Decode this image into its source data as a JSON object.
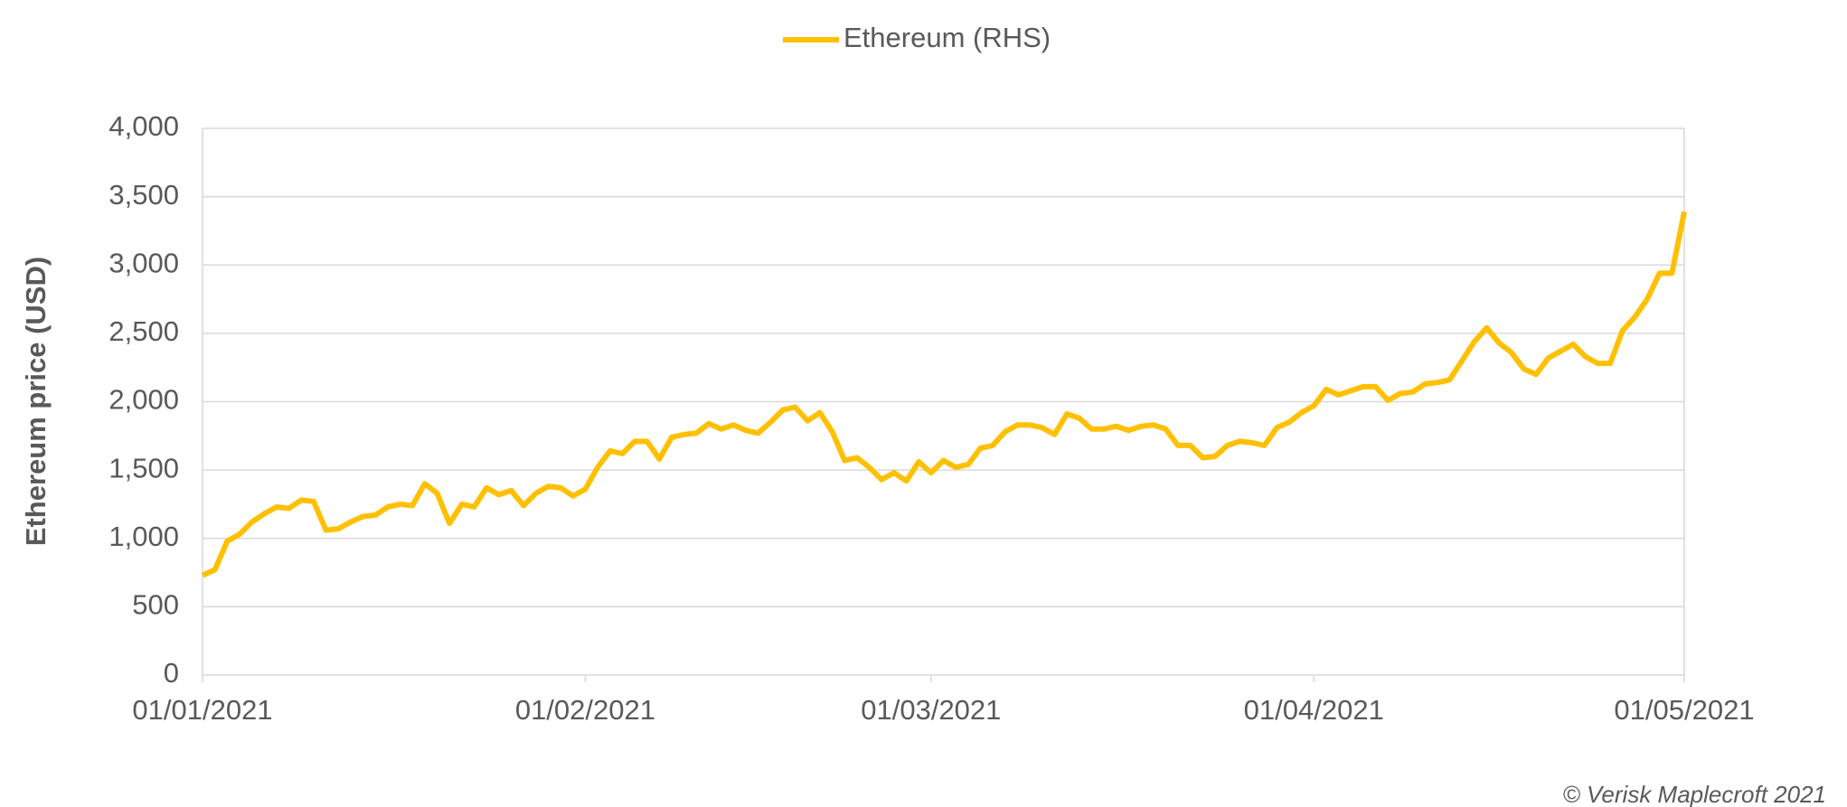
{
  "chart_data": {
    "type": "line",
    "legend_position": "top",
    "ylabel": "Ethereum price (USD)",
    "credit": "© Verisk Maplecroft 2021",
    "grid": true,
    "ylim": [
      0,
      4000
    ],
    "yticks": [
      0,
      500,
      {
        "value": 1000,
        "label": "1,000"
      },
      {
        "value": 1500,
        "label": "1,500"
      },
      {
        "value": 2000,
        "label": "2,000"
      },
      {
        "value": 2500,
        "label": "2,500"
      },
      {
        "value": 3000,
        "label": "3,000"
      },
      {
        "value": 3500,
        "label": "3,500"
      },
      {
        "value": 4000,
        "label": "4,000"
      }
    ],
    "xlim": [
      "01/01/2021",
      "01/05/2021"
    ],
    "xticks": [
      "01/01/2021",
      "01/02/2021",
      "01/03/2021",
      "01/04/2021",
      "01/05/2021"
    ],
    "x": [
      "01/01/2021",
      "02/01/2021",
      "03/01/2021",
      "04/01/2021",
      "05/01/2021",
      "06/01/2021",
      "07/01/2021",
      "08/01/2021",
      "09/01/2021",
      "10/01/2021",
      "11/01/2021",
      "12/01/2021",
      "13/01/2021",
      "14/01/2021",
      "15/01/2021",
      "16/01/2021",
      "17/01/2021",
      "18/01/2021",
      "19/01/2021",
      "20/01/2021",
      "21/01/2021",
      "22/01/2021",
      "23/01/2021",
      "24/01/2021",
      "25/01/2021",
      "26/01/2021",
      "27/01/2021",
      "28/01/2021",
      "29/01/2021",
      "30/01/2021",
      "31/01/2021",
      "01/02/2021",
      "02/02/2021",
      "03/02/2021",
      "04/02/2021",
      "05/02/2021",
      "06/02/2021",
      "07/02/2021",
      "08/02/2021",
      "09/02/2021",
      "10/02/2021",
      "11/02/2021",
      "12/02/2021",
      "13/02/2021",
      "14/02/2021",
      "15/02/2021",
      "16/02/2021",
      "17/02/2021",
      "18/02/2021",
      "19/02/2021",
      "20/02/2021",
      "21/02/2021",
      "22/02/2021",
      "23/02/2021",
      "24/02/2021",
      "25/02/2021",
      "26/02/2021",
      "27/02/2021",
      "28/02/2021",
      "01/03/2021",
      "02/03/2021",
      "03/03/2021",
      "04/03/2021",
      "05/03/2021",
      "06/03/2021",
      "07/03/2021",
      "08/03/2021",
      "09/03/2021",
      "10/03/2021",
      "11/03/2021",
      "12/03/2021",
      "13/03/2021",
      "14/03/2021",
      "15/03/2021",
      "16/03/2021",
      "17/03/2021",
      "18/03/2021",
      "19/03/2021",
      "20/03/2021",
      "21/03/2021",
      "22/03/2021",
      "23/03/2021",
      "24/03/2021",
      "25/03/2021",
      "26/03/2021",
      "27/03/2021",
      "28/03/2021",
      "29/03/2021",
      "30/03/2021",
      "31/03/2021",
      "01/04/2021",
      "02/04/2021",
      "03/04/2021",
      "04/04/2021",
      "05/04/2021",
      "06/04/2021",
      "07/04/2021",
      "08/04/2021",
      "09/04/2021",
      "10/04/2021",
      "11/04/2021",
      "12/04/2021",
      "13/04/2021",
      "14/04/2021",
      "15/04/2021",
      "16/04/2021",
      "17/04/2021",
      "18/04/2021",
      "19/04/2021",
      "20/04/2021",
      "21/04/2021",
      "22/04/2021",
      "23/04/2021",
      "24/04/2021",
      "25/04/2021",
      "26/04/2021",
      "27/04/2021",
      "28/04/2021",
      "29/04/2021",
      "30/04/2021",
      "01/05/2021"
    ],
    "series": [
      {
        "name": "Ethereum (RHS)",
        "color": "#ffc000",
        "values": [
          730,
          770,
          980,
          1030,
          1120,
          1180,
          1230,
          1220,
          1280,
          1270,
          1060,
          1070,
          1120,
          1160,
          1170,
          1230,
          1250,
          1240,
          1400,
          1330,
          1110,
          1250,
          1230,
          1370,
          1320,
          1350,
          1240,
          1330,
          1380,
          1370,
          1310,
          1360,
          1520,
          1640,
          1620,
          1710,
          1710,
          1580,
          1740,
          1760,
          1770,
          1840,
          1800,
          1830,
          1790,
          1770,
          1850,
          1940,
          1960,
          1860,
          1920,
          1780,
          1570,
          1590,
          1520,
          1430,
          1480,
          1420,
          1560,
          1480,
          1570,
          1520,
          1540,
          1660,
          1680,
          1780,
          1830,
          1830,
          1810,
          1760,
          1910,
          1880,
          1800,
          1800,
          1820,
          1790,
          1820,
          1830,
          1800,
          1680,
          1680,
          1590,
          1600,
          1680,
          1710,
          1700,
          1680,
          1810,
          1850,
          1920,
          1970,
          2090,
          2050,
          2080,
          2110,
          2110,
          2010,
          2060,
          2070,
          2130,
          2140,
          2160,
          2300,
          2440,
          2540,
          2430,
          2360,
          2240,
          2200,
          2320,
          2370,
          2420,
          2330,
          2280,
          2280,
          2520,
          2620,
          2750,
          2940,
          2940,
          3390
        ]
      }
    ]
  }
}
